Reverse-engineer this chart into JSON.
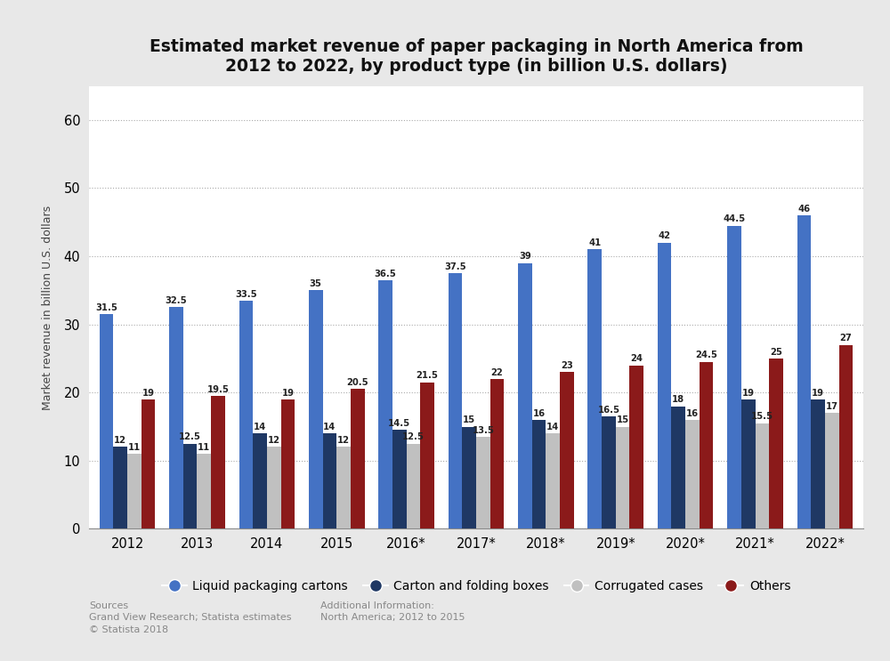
{
  "title": "Estimated market revenue of paper packaging in North America from\n2012 to 2022, by product type (in billion U.S. dollars)",
  "ylabel": "Market revenue in billion U.S. dollars",
  "categories": [
    "2012",
    "2013",
    "2014",
    "2015",
    "2016*",
    "2017*",
    "2018*",
    "2019*",
    "2020*",
    "2021*",
    "2022*"
  ],
  "series": {
    "Liquid packaging cartons": [
      31.5,
      32.5,
      33.5,
      35.0,
      36.5,
      37.5,
      39.0,
      41.0,
      42.0,
      44.5,
      46.0
    ],
    "Carton and folding boxes": [
      12.0,
      12.5,
      14.0,
      14.0,
      14.5,
      15.0,
      16.0,
      16.5,
      18.0,
      19.0,
      19.0
    ],
    "Corrugated cases": [
      11.0,
      11.0,
      12.0,
      12.0,
      12.5,
      13.5,
      14.0,
      15.0,
      16.0,
      15.5,
      17.0
    ],
    "Others": [
      19.0,
      19.5,
      19.0,
      20.5,
      21.5,
      22.0,
      23.0,
      24.0,
      24.5,
      25.0,
      27.0
    ]
  },
  "colors": {
    "Liquid packaging cartons": "#4472c4",
    "Carton and folding boxes": "#1f3864",
    "Corrugated cases": "#c0c0c0",
    "Others": "#8b1a1a"
  },
  "ylim": [
    0,
    65
  ],
  "yticks": [
    0,
    10,
    20,
    30,
    40,
    50,
    60
  ],
  "figure_bg": "#e8e8e8",
  "plot_bg": "#ffffff",
  "title_fontsize": 13.5,
  "legend_labels": [
    "Liquid packaging cartons",
    "Carton and folding boxes",
    "Corrugated cases",
    "Others"
  ],
  "source_text": "Sources\nGrand View Research; Statista estimates\n© Statista 2018",
  "additional_text": "Additional Information:\nNorth America; 2012 to 2015"
}
